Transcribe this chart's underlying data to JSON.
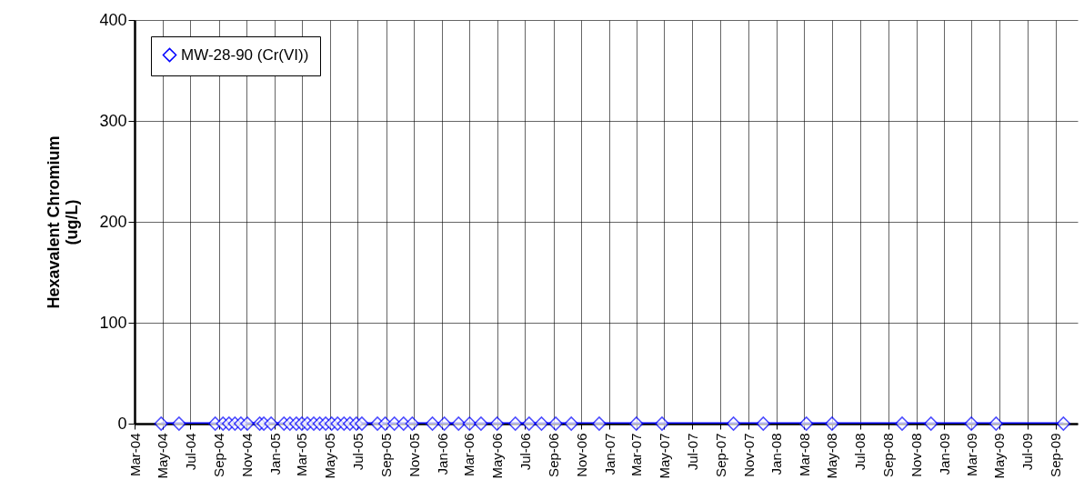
{
  "chart_data": {
    "type": "line",
    "ylabel": "Hexavalent Chromium\n(ug/L)",
    "x": [
      "2004-04-28",
      "2004-06-06",
      "2004-08-24",
      "2004-09-10",
      "2004-09-23",
      "2004-10-06",
      "2004-10-19",
      "2004-11-02",
      "2004-11-29",
      "2004-12-08",
      "2004-12-24",
      "2005-01-21",
      "2005-02-03",
      "2005-02-17",
      "2005-03-01",
      "2005-03-13",
      "2005-03-27",
      "2005-04-09",
      "2005-04-22",
      "2005-05-05",
      "2005-05-18",
      "2005-06-01",
      "2005-06-14",
      "2005-06-28",
      "2005-07-10",
      "2005-08-13",
      "2005-08-30",
      "2005-09-19",
      "2005-10-09",
      "2005-10-28",
      "2005-12-11",
      "2006-01-06",
      "2006-02-06",
      "2006-03-02",
      "2006-03-27",
      "2006-05-01",
      "2006-06-10",
      "2006-07-10",
      "2006-08-06",
      "2006-09-06",
      "2006-10-10",
      "2006-12-10",
      "2007-03-01",
      "2007-04-26",
      "2007-09-29",
      "2007-12-03",
      "2008-03-06",
      "2008-05-01",
      "2008-10-01",
      "2008-12-03",
      "2009-03-01",
      "2009-04-24",
      "2009-09-18"
    ],
    "series": [
      {
        "name": "MW-28-90 (Cr(VI))",
        "color": "#0000ff",
        "values": [
          0,
          0,
          0,
          0,
          0,
          0,
          0,
          0,
          0,
          0,
          0,
          0,
          0,
          0,
          0,
          0,
          0,
          0,
          0,
          0,
          0,
          0,
          0,
          0,
          0,
          0,
          0,
          0,
          0,
          0,
          0,
          0,
          0,
          0,
          0,
          0,
          0,
          0,
          0,
          0,
          0,
          0,
          0,
          0,
          0,
          0,
          0,
          0,
          0,
          0,
          0,
          0,
          0
        ]
      }
    ],
    "xlim": [
      "2004-03-01",
      "2009-10-19"
    ],
    "xticks": [
      {
        "value": "2004-03",
        "label": "Mar-04"
      },
      {
        "value": "2004-05",
        "label": "May-04"
      },
      {
        "value": "2004-07",
        "label": "Jul-04"
      },
      {
        "value": "2004-09",
        "label": "Sep-04"
      },
      {
        "value": "2004-11",
        "label": "Nov-04"
      },
      {
        "value": "2005-01",
        "label": "Jan-05"
      },
      {
        "value": "2005-03",
        "label": "Mar-05"
      },
      {
        "value": "2005-05",
        "label": "May-05"
      },
      {
        "value": "2005-07",
        "label": "Jul-05"
      },
      {
        "value": "2005-09",
        "label": "Sep-05"
      },
      {
        "value": "2005-11",
        "label": "Nov-05"
      },
      {
        "value": "2006-01",
        "label": "Jan-06"
      },
      {
        "value": "2006-03",
        "label": "Mar-06"
      },
      {
        "value": "2006-05",
        "label": "May-06"
      },
      {
        "value": "2006-07",
        "label": "Jul-06"
      },
      {
        "value": "2006-09",
        "label": "Sep-06"
      },
      {
        "value": "2006-11",
        "label": "Nov-06"
      },
      {
        "value": "2007-01",
        "label": "Jan-07"
      },
      {
        "value": "2007-03",
        "label": "Mar-07"
      },
      {
        "value": "2007-05",
        "label": "May-07"
      },
      {
        "value": "2007-07",
        "label": "Jul-07"
      },
      {
        "value": "2007-09",
        "label": "Sep-07"
      },
      {
        "value": "2007-11",
        "label": "Nov-07"
      },
      {
        "value": "2008-01",
        "label": "Jan-08"
      },
      {
        "value": "2008-03",
        "label": "Mar-08"
      },
      {
        "value": "2008-05",
        "label": "May-08"
      },
      {
        "value": "2008-07",
        "label": "Jul-08"
      },
      {
        "value": "2008-09",
        "label": "Sep-08"
      },
      {
        "value": "2008-11",
        "label": "Nov-08"
      },
      {
        "value": "2009-01",
        "label": "Jan-09"
      },
      {
        "value": "2009-03",
        "label": "Mar-09"
      },
      {
        "value": "2009-05",
        "label": "May-09"
      },
      {
        "value": "2009-07",
        "label": "Jul-09"
      },
      {
        "value": "2009-09",
        "label": "Sep-09"
      }
    ],
    "ylim": [
      0,
      400
    ],
    "yticks": [
      0,
      100,
      200,
      300,
      400
    ],
    "grid": true,
    "legend": "top left",
    "marker": "diamond",
    "line_style": "solid"
  }
}
